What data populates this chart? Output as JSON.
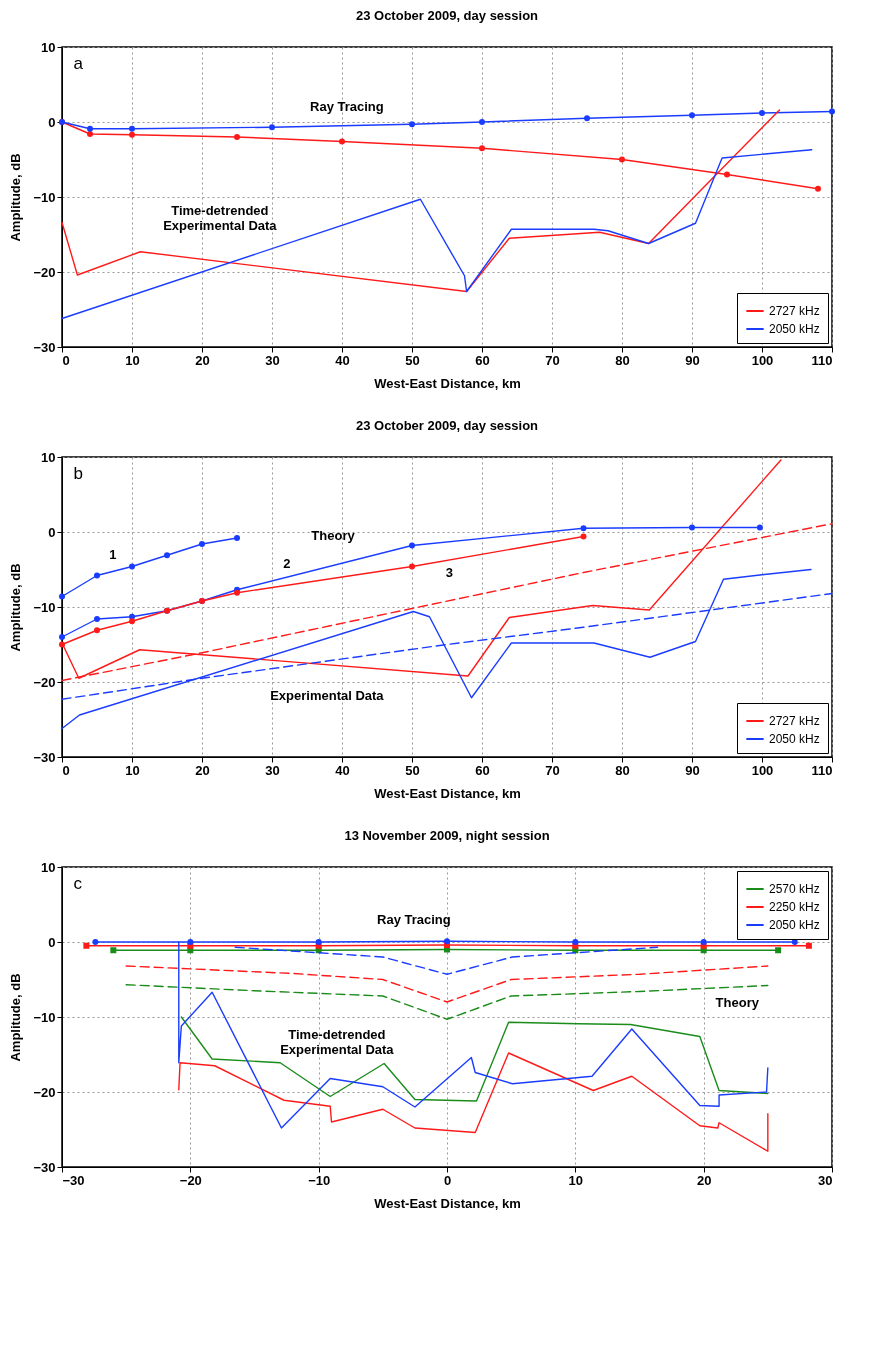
{
  "chart_data": [
    {
      "type": "line",
      "title": "23 October 2009, day session",
      "xlabel": "West-East Distance, km",
      "ylabel": "Amplitude, dB",
      "xlim": [
        0,
        110
      ],
      "xticks": [
        0,
        10,
        20,
        30,
        40,
        50,
        60,
        70,
        80,
        90,
        100,
        110
      ],
      "ylim": [
        -30,
        10
      ],
      "yticks": [
        -30,
        -20,
        -10,
        0,
        10
      ],
      "grid": true,
      "legend": "bottom right",
      "series": [
        {
          "name": "2727 kHz",
          "color": "#ff1a1a",
          "marker": "circle",
          "x": [
            0,
            4,
            10,
            25,
            40,
            60,
            80,
            95,
            108
          ],
          "values": [
            0,
            -1.6,
            -1.7,
            -2.0,
            -2.6,
            -3.5,
            -5.0,
            -7.0,
            -8.9
          ]
        },
        {
          "name": "2050 kHz",
          "color": "#1a3cff",
          "marker": "circle",
          "x": [
            0,
            4,
            10,
            30,
            50,
            60,
            75,
            90,
            100,
            110
          ],
          "values": [
            0,
            -0.9,
            -0.9,
            -0.7,
            -0.3,
            0,
            0.5,
            0.9,
            1.2,
            1.4
          ]
        },
        {
          "color": "#ff1a1a",
          "marker": "none",
          "x": [
            0,
            2.2,
            11.2,
            57.8,
            63.9,
            76.8,
            83.8,
            102.5
          ],
          "values": [
            -13.4,
            -20.4,
            -17.3,
            -22.6,
            -15.5,
            -14.7,
            -16.2,
            1.6
          ]
        },
        {
          "color": "#1a3cff",
          "marker": "none",
          "x": [
            0,
            51.2,
            57.5,
            57.8,
            64.2,
            76,
            78,
            83.8,
            90.5,
            94.3,
            107.1
          ],
          "values": [
            -26.2,
            -10.3,
            -20.5,
            -22.6,
            -14.3,
            -14.3,
            -14.5,
            -16.2,
            -13.5,
            -4.8,
            -3.7
          ]
        }
      ],
      "annotations": [
        "a",
        "Ray Tracing",
        "Time-detrended\nExperimental Data"
      ]
    },
    {
      "type": "line",
      "title": "23 October 2009, day session",
      "xlabel": "West-East Distance, km",
      "ylabel": "Amplitude, dB",
      "xlim": [
        0,
        110
      ],
      "xticks": [
        0,
        10,
        20,
        30,
        40,
        50,
        60,
        70,
        80,
        90,
        100,
        110
      ],
      "ylim": [
        -30,
        10
      ],
      "yticks": [
        -30,
        -20,
        -10,
        0,
        10
      ],
      "grid": true,
      "legend": "bottom right",
      "series": [
        {
          "name": "2727 kHz",
          "color": "#ff1a1a",
          "marker": "none",
          "x": [
            0,
            2.4,
            11.1,
            58,
            63.9,
            75.8,
            83.9,
            102.7
          ],
          "values": [
            -14.8,
            -19.5,
            -15.7,
            -19.2,
            -11.4,
            -9.8,
            -10.4,
            9.6
          ]
        },
        {
          "name": "2050 kHz",
          "color": "#1a3cff",
          "marker": "none",
          "x": [
            0,
            2.5,
            50.2,
            52.5,
            58.5,
            64.2,
            76,
            84,
            90.5,
            94.5,
            100,
            107
          ],
          "values": [
            -26.2,
            -24.4,
            -10.6,
            -11.3,
            -22.1,
            -14.8,
            -14.8,
            -16.7,
            -14.6,
            -6.3,
            -5.7,
            -5.0
          ]
        },
        {
          "color": "#1a3cff",
          "marker": "circle",
          "x": [
            0,
            5,
            10,
            15,
            20,
            25
          ],
          "values": [
            -8.6,
            -5.8,
            -4.6,
            -3.1,
            -1.6,
            -0.8
          ]
        },
        {
          "color": "#1a3cff",
          "marker": "circle",
          "x": [
            0,
            5,
            10,
            15,
            20,
            25,
            50,
            74.5,
            90,
            99.7
          ],
          "values": [
            -14.0,
            -11.6,
            -11.3,
            -10.5,
            -9.2,
            -7.7,
            -1.8,
            0.5,
            0.6,
            0.6
          ]
        },
        {
          "color": "#ff1a1a",
          "marker": "circle",
          "x": [
            0,
            5,
            10,
            15,
            20,
            25,
            50,
            74.5
          ],
          "values": [
            -15.0,
            -13.1,
            -11.9,
            -10.5,
            -9.2,
            -8.1,
            -4.6,
            -0.6
          ]
        },
        {
          "color": "#ff1a1a",
          "marker": "none",
          "line_style": "dashed",
          "x": [
            0,
            20,
            50,
            74.5,
            110
          ],
          "values": [
            -19.8,
            -16.1,
            -10.2,
            -5.4,
            1.1
          ]
        },
        {
          "color": "#1a3cff",
          "marker": "none",
          "line_style": "dashed",
          "x": [
            0,
            20,
            55,
            74.5,
            110
          ],
          "values": [
            -22.3,
            -19.5,
            -15.0,
            -12.7,
            -8.2
          ]
        }
      ],
      "annotations": [
        "b",
        "1",
        "2",
        "3",
        "Theory",
        "Experimental Data"
      ]
    },
    {
      "type": "line",
      "title": "13 November 2009, night session",
      "xlabel": "West-East Distance, km",
      "ylabel": "Amplitude, dB",
      "xlim": [
        -30,
        30
      ],
      "xticks": [
        -30,
        -20,
        -10,
        0,
        10,
        20,
        30
      ],
      "ylim": [
        -30,
        10
      ],
      "yticks": [
        -30,
        -20,
        -10,
        0,
        10
      ],
      "grid": true,
      "legend": "top right",
      "series": [
        {
          "name": "2570 kHz",
          "color": "#1a8c1a",
          "marker": "square",
          "x": [
            -26,
            -20,
            -10,
            0,
            10,
            20,
            25.8
          ],
          "values": [
            -1.1,
            -1.1,
            -1.1,
            -1.0,
            -1.1,
            -1.1,
            -1.1
          ]
        },
        {
          "name": "2250 kHz",
          "color": "#ff1a1a",
          "marker": "square",
          "x": [
            -28.1,
            -20,
            -10,
            0,
            10,
            20,
            28.2
          ],
          "values": [
            -0.5,
            -0.5,
            -0.5,
            -0.4,
            -0.5,
            -0.5,
            -0.5
          ]
        },
        {
          "name": "2050 kHz",
          "color": "#1a3cff",
          "marker": "circle",
          "x": [
            -27.4,
            -20,
            -10,
            0,
            10,
            20,
            27.1
          ],
          "values": [
            0,
            0,
            0,
            0.1,
            0,
            0,
            0
          ]
        },
        {
          "color": "#1a3cff",
          "marker": "none",
          "line_style": "dashed",
          "x": [
            -16.5,
            -5,
            0,
            5.1,
            16.4
          ],
          "values": [
            -0.7,
            -2.0,
            -4.3,
            -2.0,
            -0.7
          ]
        },
        {
          "color": "#ff1a1a",
          "marker": "none",
          "line_style": "dashed",
          "x": [
            -25,
            -12,
            -5,
            0,
            5,
            15,
            25
          ],
          "values": [
            -3.2,
            -4.2,
            -5.0,
            -8.0,
            -5.0,
            -4.3,
            -3.2
          ]
        },
        {
          "color": "#1a8c1a",
          "marker": "none",
          "line_style": "dashed",
          "x": [
            -25,
            -15,
            -5,
            0,
            5,
            15,
            25
          ],
          "values": [
            -5.7,
            -6.5,
            -7.2,
            -10.3,
            -7.2,
            -6.6,
            -5.8
          ]
        },
        {
          "color": "#1a8c1a",
          "marker": "none",
          "x": [
            -20.7,
            -18.3,
            -13,
            -9.1,
            -4.9,
            -2.5,
            2.3,
            4.8,
            10.2,
            14.3,
            19.7,
            21.2,
            25
          ],
          "values": [
            -10,
            -15.6,
            -16.1,
            -20.6,
            -16.2,
            -21.0,
            -21.2,
            -10.7,
            -10.9,
            -11.0,
            -12.6,
            -19.8,
            -20.2
          ]
        },
        {
          "color": "#ff1a1a",
          "marker": "none",
          "x": [
            -20.9,
            -20.8,
            -18.1,
            -12.7,
            -9.1,
            -9.0,
            -5,
            -2.5,
            2.2,
            4.8,
            11.4,
            14.4,
            19.7,
            21.1,
            21.2,
            25,
            25
          ],
          "values": [
            -19.7,
            -16.1,
            -16.5,
            -21.1,
            -21.9,
            -24.0,
            -22.3,
            -24.8,
            -25.4,
            -14.8,
            -19.8,
            -17.9,
            -24.5,
            -24.8,
            -24.1,
            -27.9,
            -22.9
          ]
        },
        {
          "color": "#1a3cff",
          "marker": "none",
          "x": [
            -20.9,
            -20.9,
            -20.7,
            -18.3,
            -12.9,
            -9.1,
            -5,
            -2.5,
            1.9,
            2.2,
            5.1,
            11.3,
            14.4,
            19.7,
            21.2,
            21.2,
            24.9,
            25
          ],
          "values": [
            0,
            -16.1,
            -11.2,
            -6.7,
            -24.8,
            -18.2,
            -19.3,
            -22.0,
            -15.4,
            -17.4,
            -18.9,
            -17.9,
            -11.6,
            -21.8,
            -21.9,
            -20.4,
            -20.0,
            -16.8
          ]
        }
      ],
      "annotations": [
        "c",
        "Ray Tracing",
        "Time-detrended\nExperimental Data",
        "Theory"
      ]
    }
  ]
}
